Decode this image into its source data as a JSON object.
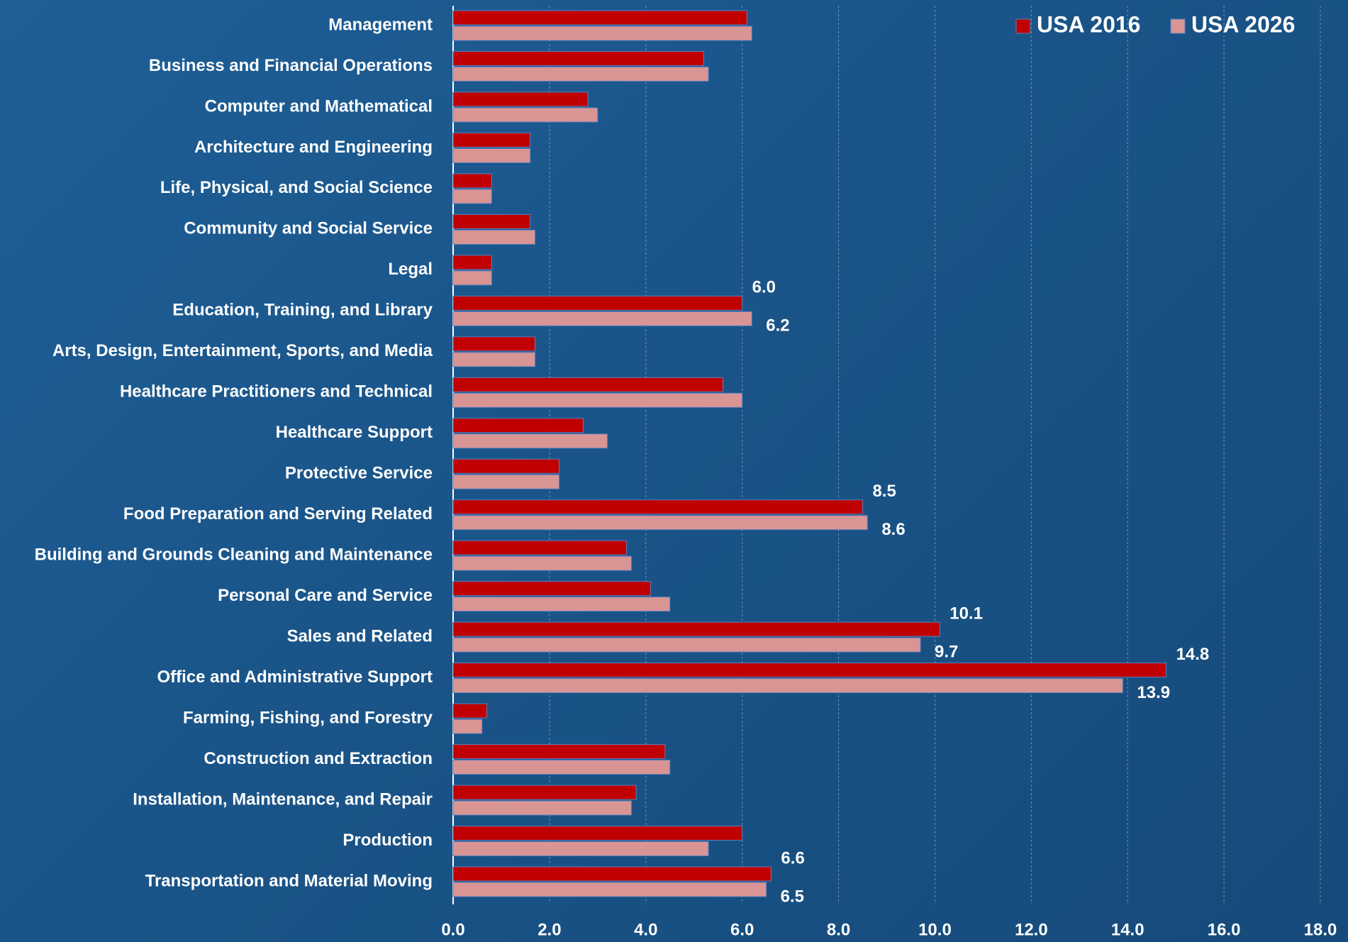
{
  "chart_data": {
    "type": "hbar",
    "categories": [
      "Management",
      "Business and Financial Operations",
      "Computer and Mathematical",
      "Architecture and Engineering",
      "Life, Physical, and Social Science",
      "Community and Social Service",
      "Legal",
      "Education, Training, and Library",
      "Arts, Design, Entertainment, Sports, and Media",
      "Healthcare Practitioners and Technical",
      "Healthcare Support",
      "Protective Service",
      "Food Preparation and Serving Related",
      "Building and Grounds Cleaning and Maintenance",
      "Personal Care and Service",
      "Sales and Related",
      "Office and Administrative Support",
      "Farming, Fishing, and Forestry",
      "Construction and Extraction",
      "Installation, Maintenance, and Repair",
      "Production",
      "Transportation and Material Moving"
    ],
    "series": [
      {
        "name": "USA 2016",
        "color": "#c00000",
        "values": [
          6.1,
          5.2,
          2.8,
          1.6,
          0.8,
          1.6,
          0.8,
          6.0,
          1.7,
          5.6,
          2.7,
          2.2,
          8.5,
          3.6,
          4.1,
          10.1,
          14.8,
          0.7,
          4.4,
          3.8,
          6.0,
          6.6
        ],
        "value_labels": [
          null,
          null,
          null,
          null,
          null,
          null,
          null,
          "6.0",
          null,
          null,
          null,
          null,
          "8.5",
          null,
          null,
          "10.1",
          "14.8",
          null,
          null,
          null,
          null,
          "6.6"
        ]
      },
      {
        "name": "USA 2026",
        "color": "#d99594",
        "values": [
          6.2,
          5.3,
          3.0,
          1.6,
          0.8,
          1.7,
          0.8,
          6.2,
          1.7,
          6.0,
          3.2,
          2.2,
          8.6,
          3.7,
          4.5,
          9.7,
          13.9,
          0.6,
          4.5,
          3.7,
          5.3,
          6.5
        ],
        "value_labels": [
          null,
          null,
          null,
          null,
          null,
          null,
          null,
          "6.2",
          null,
          null,
          null,
          null,
          "8.6",
          null,
          null,
          "9.7",
          "13.9",
          null,
          null,
          null,
          null,
          "6.5"
        ]
      }
    ],
    "xlim": [
      0,
      18
    ],
    "xticks": [
      {
        "value": 0,
        "label": "0.0"
      },
      {
        "value": 2,
        "label": "2.0"
      },
      {
        "value": 4,
        "label": "4.0"
      },
      {
        "value": 6,
        "label": "6.0"
      },
      {
        "value": 8,
        "label": "8.0"
      },
      {
        "value": 10,
        "label": "10.0"
      },
      {
        "value": 12,
        "label": "12.0"
      },
      {
        "value": 14,
        "label": "14.0"
      },
      {
        "value": 16,
        "label": "16.0"
      },
      {
        "value": 18,
        "label": "18.0"
      }
    ],
    "grid": true,
    "legend": "top-right"
  }
}
